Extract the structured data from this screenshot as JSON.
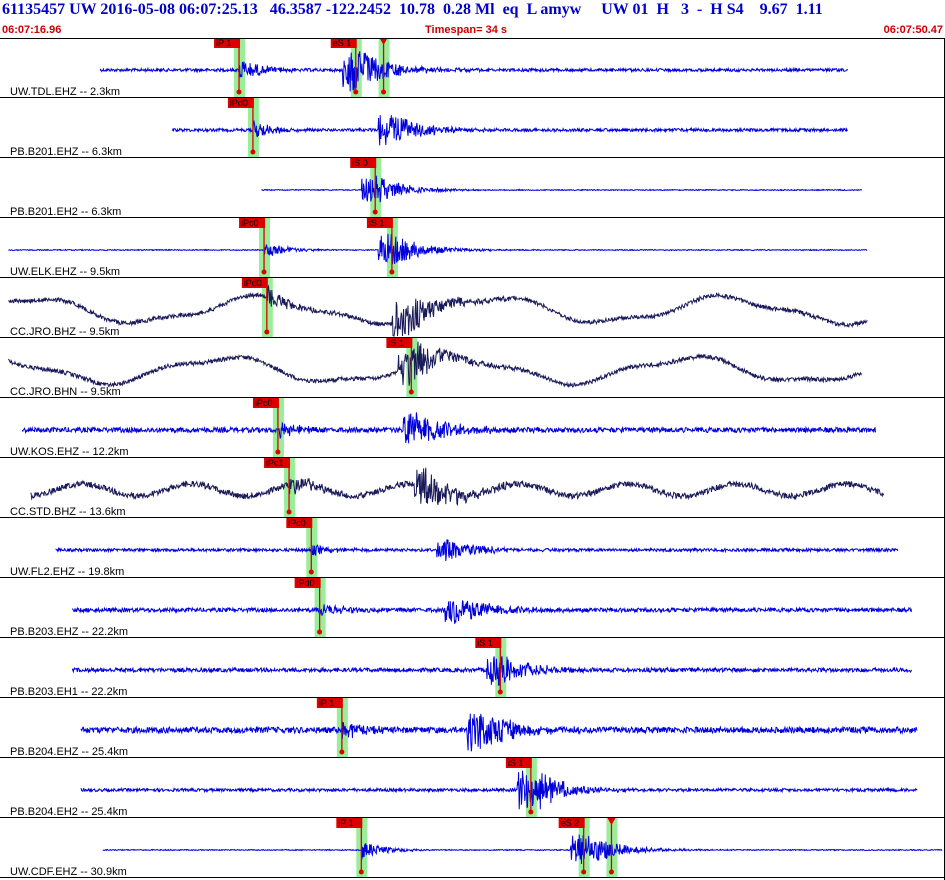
{
  "header": {
    "title": "61135457 UW 2016-05-08 06:07:25.13   46.3587 -122.2452  10.78  0.28 Ml  eq  L amyw     UW 01  H   3  -  H S4    9.67  1.11",
    "start_time": "06:07:16.96",
    "timespan": "Timespan=  34 s",
    "end_time": "06:07:50.47"
  },
  "chart_data": {
    "type": "line",
    "title": "61135457 UW 2016-05-08 06:07:25.13   46.3587 -122.2452  10.78  0.28 Ml  eq  L amyw     UW 01  H   3  -  H S4    9.67  1.11",
    "x_range": [
      0,
      34
    ],
    "x_unit": "s",
    "colors": {
      "trace_blue": "#0000dd",
      "trace_dark": "#1a1a5a",
      "pick": "#dd0000",
      "window": "#99ee99"
    },
    "series": [
      {
        "name": "UW.TDL.EHZ -- 2.3km",
        "color": "trace_blue",
        "picks": [
          {
            "label": "iP 1",
            "t": 8.6
          },
          {
            "label": "eS 1",
            "t": 12.8
          },
          {
            "label": "",
            "t": 13.8
          }
        ]
      },
      {
        "name": "PB.B201.EHZ -- 6.3km",
        "color": "trace_blue",
        "picks": [
          {
            "label": "iPd0",
            "t": 9.1
          }
        ]
      },
      {
        "name": "PB.B201.EH2 -- 6.3km",
        "color": "trace_blue",
        "picks": [
          {
            "label": "iS 0",
            "t": 13.5
          }
        ]
      },
      {
        "name": "UW.ELK.EHZ -- 9.5km",
        "color": "trace_blue",
        "picks": [
          {
            "label": "iPc0",
            "t": 9.5
          },
          {
            "label": "iS 1",
            "t": 14.1
          }
        ]
      },
      {
        "name": "CC.JRO.BHZ -- 9.5km",
        "color": "trace_dark",
        "picks": [
          {
            "label": "iPd0",
            "t": 9.6
          }
        ]
      },
      {
        "name": "CC.JRO.BHN -- 9.5km",
        "color": "trace_dark",
        "picks": [
          {
            "label": "iS 1",
            "t": 14.8
          }
        ]
      },
      {
        "name": "UW.KOS.EHZ -- 12.2km",
        "color": "trace_blue",
        "picks": [
          {
            "label": "iPc0",
            "t": 10.0
          }
        ]
      },
      {
        "name": "CC.STD.BHZ -- 13.6km",
        "color": "trace_dark",
        "picks": [
          {
            "label": "iPc1",
            "t": 10.4
          }
        ]
      },
      {
        "name": "UW.FL2.EHZ -- 19.8km",
        "color": "trace_blue",
        "picks": [
          {
            "label": "iPc0",
            "t": 11.2
          }
        ]
      },
      {
        "name": "PB.B203.EHZ -- 22.2km",
        "color": "trace_blue",
        "picks": [
          {
            "label": "iPd0",
            "t": 11.5
          }
        ]
      },
      {
        "name": "PB.B203.EH1 -- 22.2km",
        "color": "trace_blue",
        "picks": [
          {
            "label": "iS 1",
            "t": 18.0
          }
        ]
      },
      {
        "name": "PB.B204.EHZ -- 25.4km",
        "color": "trace_blue",
        "picks": [
          {
            "label": "iP 1",
            "t": 12.3
          }
        ]
      },
      {
        "name": "PB.B204.EH2 -- 25.4km",
        "color": "trace_blue",
        "picks": [
          {
            "label": "iS 1",
            "t": 19.1
          }
        ]
      },
      {
        "name": "UW.CDF.EHZ -- 30.9km",
        "color": "trace_blue",
        "picks": [
          {
            "label": "iP 1",
            "t": 13.0
          },
          {
            "label": "eS 2",
            "t": 21.0
          },
          {
            "label": "",
            "t": 22.0
          }
        ]
      }
    ]
  }
}
